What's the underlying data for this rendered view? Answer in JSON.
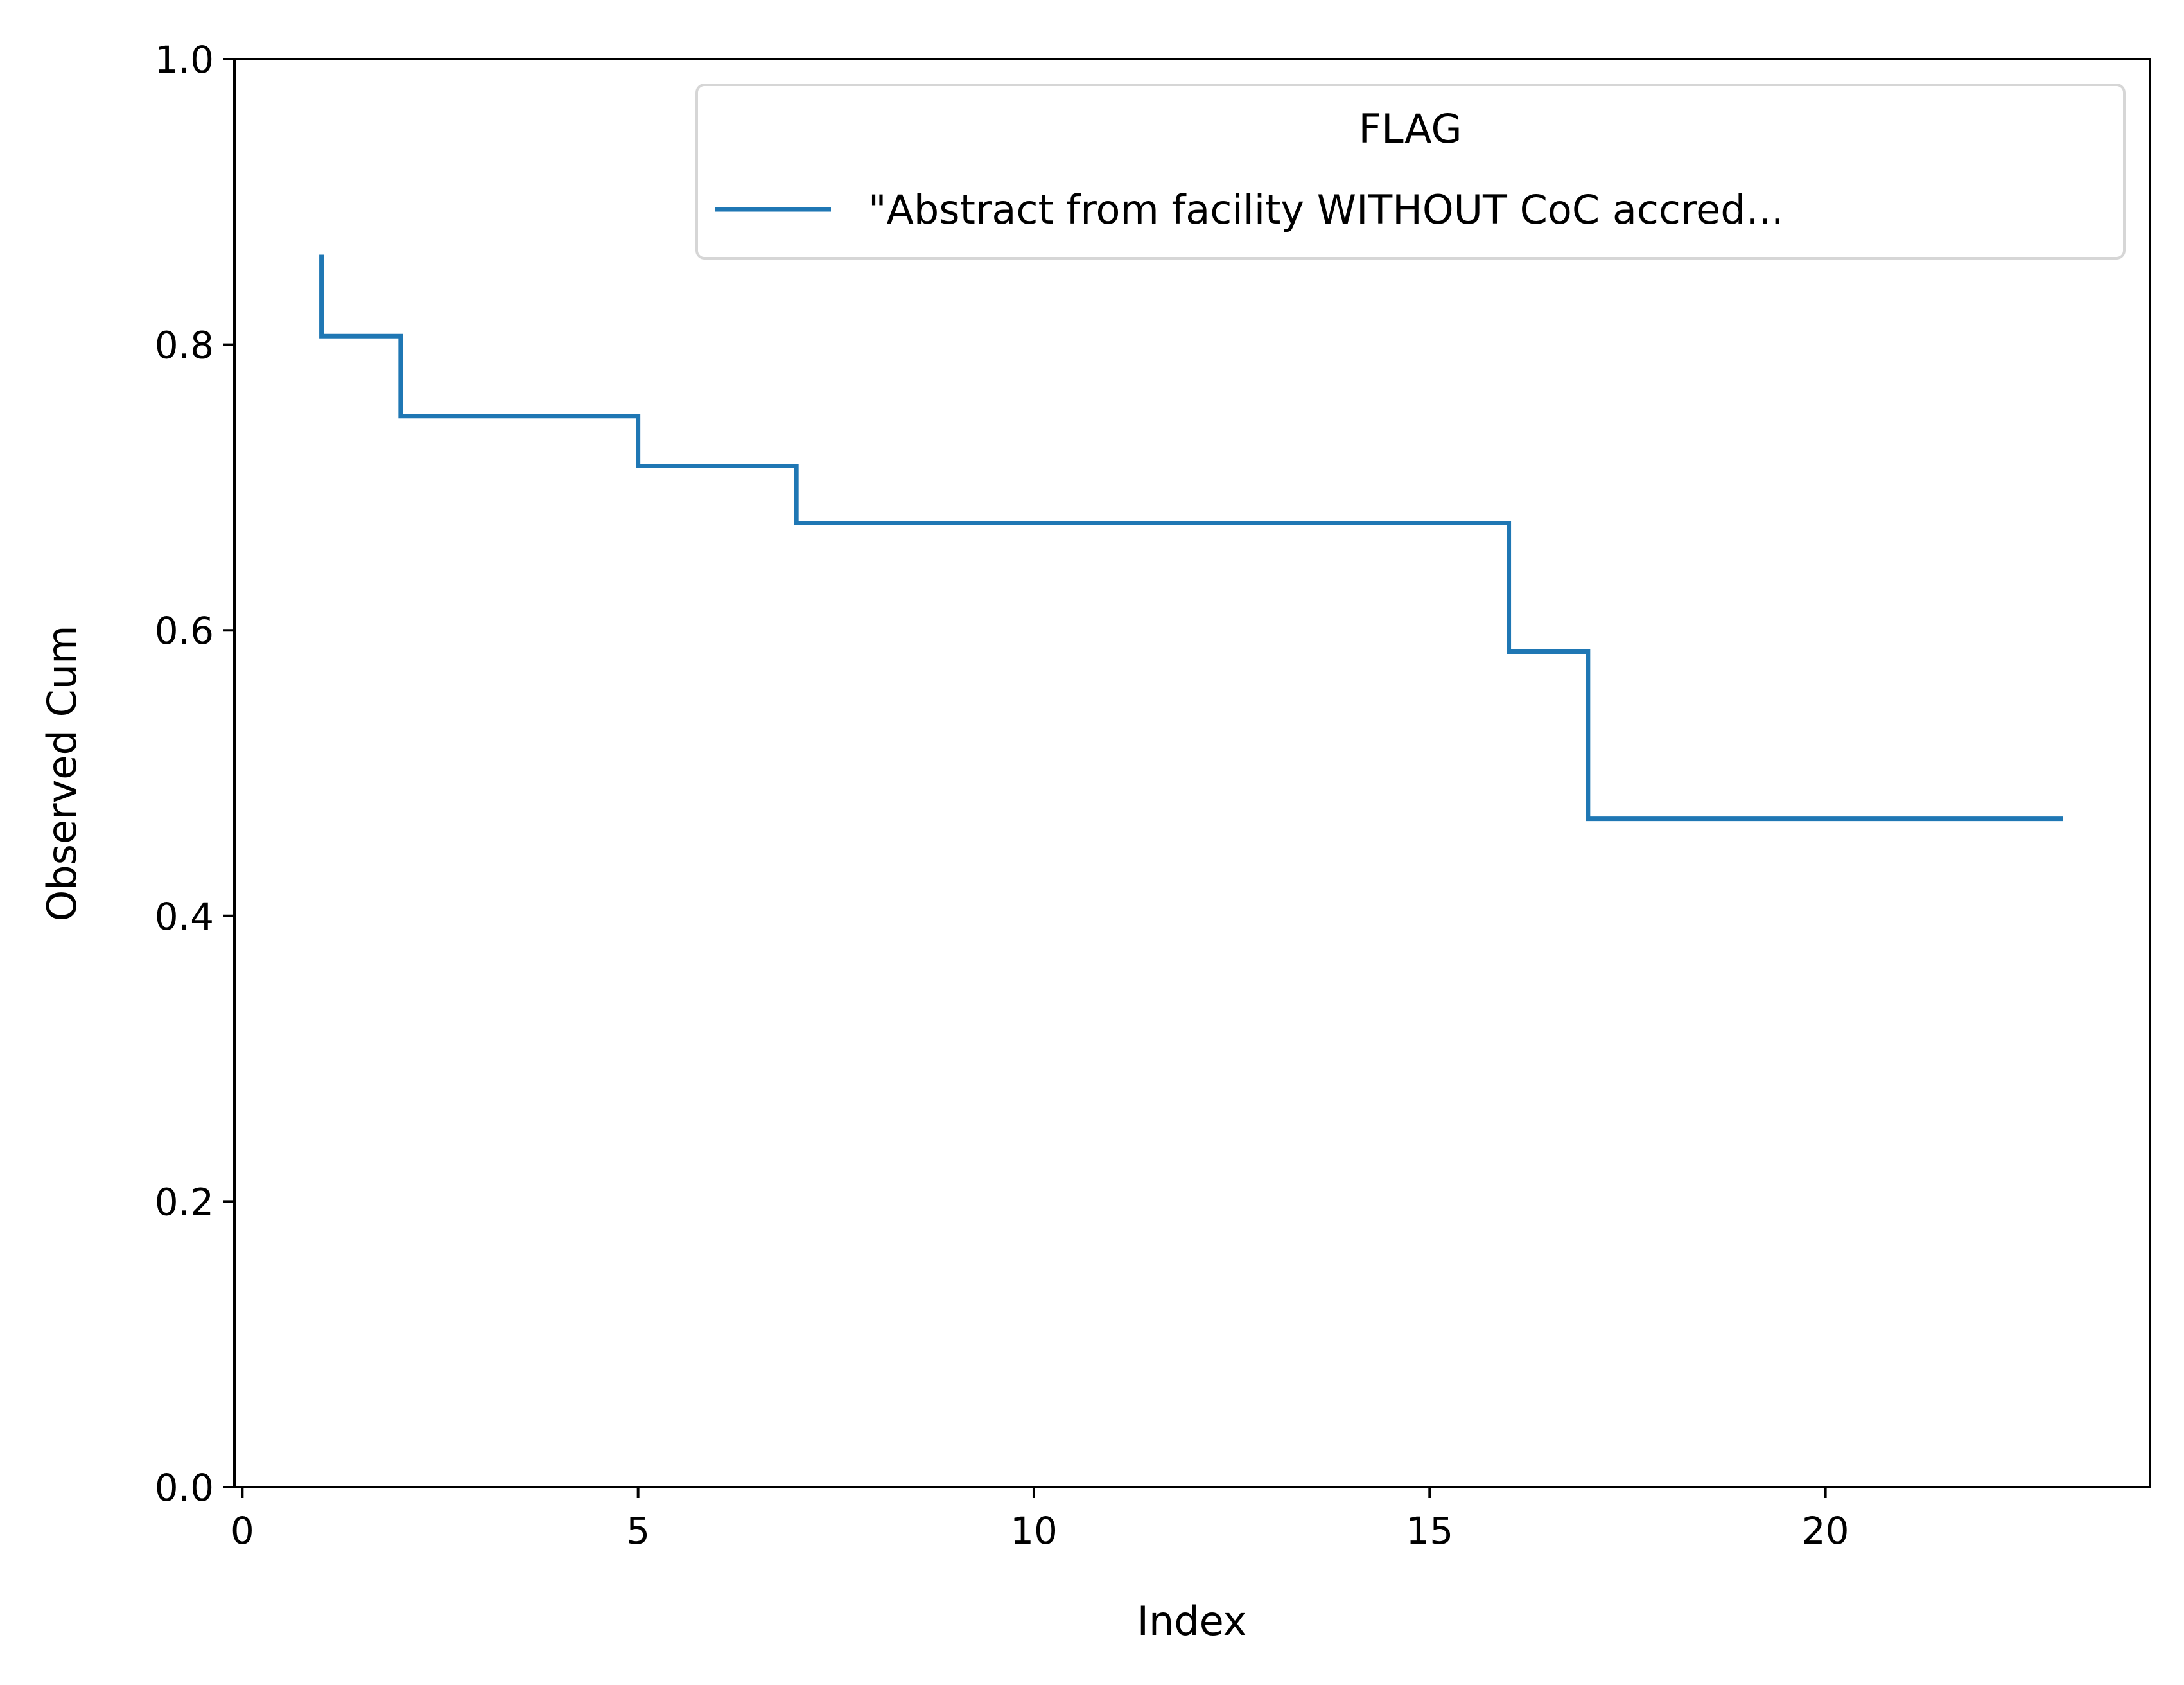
{
  "chart_data": {
    "type": "line",
    "drawstyle": "steps-post",
    "xlabel": "Index",
    "ylabel": "Observed Cum",
    "xlim": [
      -0.1,
      24.1
    ],
    "ylim": [
      0.0,
      1.0
    ],
    "xticks": [
      0,
      5,
      10,
      15,
      20
    ],
    "yticks": [
      0.0,
      0.2,
      0.4,
      0.6,
      0.8,
      1.0
    ],
    "xtick_labels": [
      "0",
      "5",
      "10",
      "15",
      "20"
    ],
    "ytick_labels": [
      "0.0",
      "0.2",
      "0.4",
      "0.6",
      "0.8",
      "1.0"
    ],
    "grid": false,
    "legend": {
      "title": "FLAG",
      "placement": "top-right"
    },
    "series": [
      {
        "name": "\"Abstract from facility WITHOUT CoC accred...",
        "color": "#1f77b4",
        "x": [
          1,
          1,
          2,
          5,
          7,
          16,
          17,
          23
        ],
        "y": [
          0.863,
          0.806,
          0.75,
          0.715,
          0.675,
          0.585,
          0.468,
          0.468
        ]
      }
    ]
  }
}
